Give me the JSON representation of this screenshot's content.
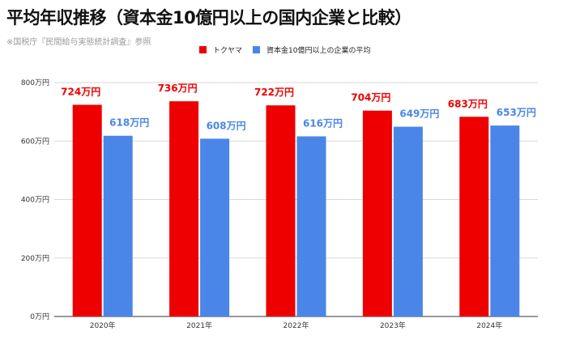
{
  "title": "平均年収推移（資本金10億円以上の国内企業と比較）",
  "subtitle": "※国税庁『民間給与実態統計調査』参照",
  "colors": {
    "company": "#ee0000",
    "average": "#4a86e8",
    "grid": "#d9d9d9",
    "axis": "#333333"
  },
  "chart_data": {
    "type": "bar",
    "categories": [
      "2020年",
      "2021年",
      "2022年",
      "2023年",
      "2024年"
    ],
    "series": [
      {
        "name": "トクヤマ",
        "values": [
          724,
          736,
          722,
          704,
          683
        ],
        "labels": [
          "724万円",
          "736万円",
          "722万円",
          "704万円",
          "683万円"
        ]
      },
      {
        "name": "資本金10億円以上の企業の平均",
        "values": [
          618,
          608,
          616,
          649,
          653
        ],
        "labels": [
          "618万円",
          "608万円",
          "616万円",
          "649万円",
          "653万円"
        ]
      }
    ],
    "ylim": [
      0,
      800
    ],
    "yticks": [
      0,
      200,
      400,
      600,
      800
    ],
    "ytick_labels": [
      "0万円",
      "200万円",
      "400万円",
      "600万円",
      "800万円"
    ],
    "grid": true,
    "legend": "top"
  }
}
